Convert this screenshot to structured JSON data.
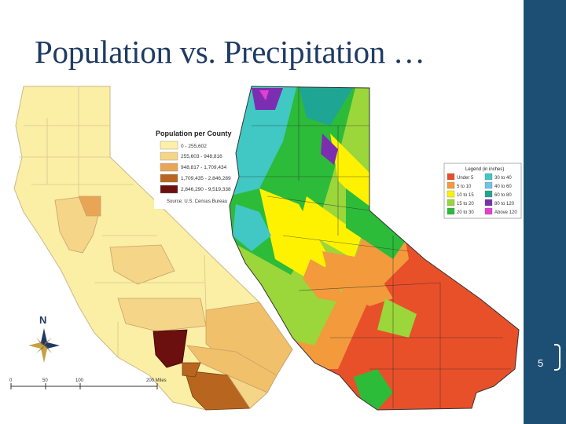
{
  "slide": {
    "title": "Population vs. Precipitation …",
    "page_number": "5"
  },
  "population_map": {
    "legend_title": "Population per County",
    "legend_items": [
      {
        "label": "0 -    255,602",
        "color": "#fdf0a8"
      },
      {
        "label": "255,603 -    948,816",
        "color": "#f5d587"
      },
      {
        "label": "948,817 - 1,709,434",
        "color": "#e9a556"
      },
      {
        "label": "1,709,435 - 2,846,289",
        "color": "#b8661f"
      },
      {
        "label": "2,846,290 - 9,519,338",
        "color": "#6b0f0f"
      }
    ],
    "source": "Source: U.S. Census Bureau",
    "north_label": "N",
    "scale_labels": [
      "0",
      "50",
      "100",
      "200 Miles"
    ]
  },
  "precipitation_map": {
    "legend_title": "Legend (in inches)",
    "legend_items": [
      {
        "label": "Under 5",
        "color": "#e8502a"
      },
      {
        "label": "5 to 10",
        "color": "#f39a3c"
      },
      {
        "label": "10 to 15",
        "color": "#fff200"
      },
      {
        "label": "15 to 20",
        "color": "#9bd63a"
      },
      {
        "label": "20 to 30",
        "color": "#2dbb3a"
      },
      {
        "label": "30 to 40",
        "color": "#41c8c4"
      },
      {
        "label": "40 to 60",
        "color": "#6fc3e9"
      },
      {
        "label": "60 to 80",
        "color": "#1fa594"
      },
      {
        "label": "80 to 120",
        "color": "#7b2fb0"
      },
      {
        "label": "Above 120",
        "color": "#e43fd0"
      }
    ]
  }
}
